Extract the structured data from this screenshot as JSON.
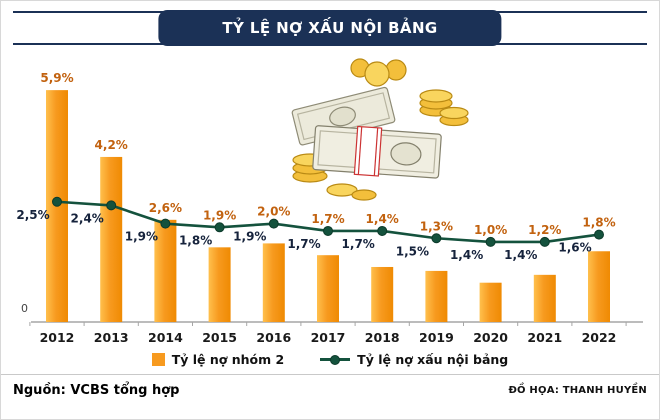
{
  "title": "TỶ LỆ NỢ XẤU NỘI BẢNG",
  "colors": {
    "title_bg": "#1b3156",
    "bar_light": "#ffc04d",
    "bar": "#f79a1f",
    "bar_dark": "#ef8a02",
    "bar_label": "#c2620f",
    "line": "#14523d",
    "line_dark": "#0c3a2a",
    "line_label": "#16233c",
    "axis": "#a6a6a6"
  },
  "chart_data": {
    "type": "bar+line",
    "categories": [
      "2012",
      "2013",
      "2014",
      "2015",
      "2016",
      "2017",
      "2018",
      "2019",
      "2020",
      "2021",
      "2022"
    ],
    "series": [
      {
        "name": "Tỷ lệ nợ nhóm 2",
        "type": "bar",
        "values": [
          5.9,
          4.2,
          2.6,
          1.9,
          2.0,
          1.7,
          1.4,
          1.3,
          1.0,
          1.2,
          1.8
        ],
        "labels": [
          "5,9%",
          "4,2%",
          "2,6%",
          "1,9%",
          "2,0%",
          "1,7%",
          "1,4%",
          "1,3%",
          "1,0%",
          "1,2%",
          "1,8%"
        ]
      },
      {
        "name": "Tỷ lệ nợ xấu nội bảng",
        "type": "line",
        "values": [
          2.5,
          2.4,
          1.9,
          1.8,
          1.9,
          1.7,
          1.7,
          1.5,
          1.4,
          1.4,
          1.6
        ],
        "labels": [
          "2,5%",
          "2,4%",
          "1,9%",
          "1,8%",
          "1,9%",
          "1,7%",
          "1,7%",
          "1,5%",
          "1,4%",
          "1,4%",
          "1,6%"
        ]
      }
    ],
    "title": "TỶ LỆ NỢ XẤU NỘI BẢNG",
    "xlabel": "",
    "ylabel": "",
    "y_axis_labels": [
      "0"
    ],
    "ylim": [
      0,
      6.5
    ],
    "grid": false,
    "legend_position": "bottom"
  },
  "legend": {
    "bar_label": "Tỷ lệ nợ nhóm 2",
    "line_label": "Tỷ lệ nợ xấu nội bảng"
  },
  "illustration": "money-stacks-and-gold-coins",
  "footer": {
    "source": "Nguồn: VCBS tổng hợp",
    "credit": "ĐỒ HỌA: THANH HUYỀN"
  }
}
